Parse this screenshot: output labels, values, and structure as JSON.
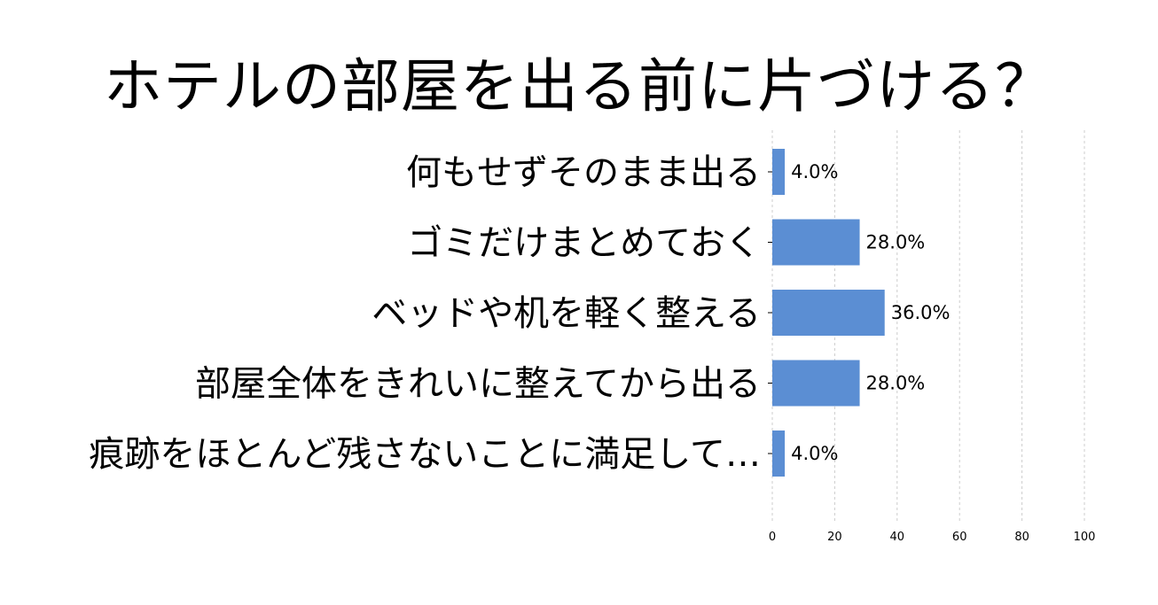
{
  "chart_data": {
    "type": "bar",
    "orientation": "horizontal",
    "title": "ホテルの部屋を出る前に片づける？",
    "categories": [
      "何もせずそのまま出る",
      "ゴミだけまとめておく",
      "ベッドや机を軽く整える",
      "部屋全体をきれいに整えてから出る",
      "痕跡をほとんど残さないことに満足して…"
    ],
    "values": [
      4.0,
      28.0,
      36.0,
      28.0,
      4.0
    ],
    "value_labels": [
      "4.0%",
      "28.0%",
      "36.0%",
      "28.0%",
      "4.0%"
    ],
    "xlim": [
      0,
      100
    ],
    "xticks": [
      "0",
      "20",
      "40",
      "60",
      "80",
      "100"
    ],
    "xlabel": "",
    "ylabel": "",
    "grid": "x-dashed",
    "legend": "none",
    "bar_color": "#5b8ed3"
  }
}
